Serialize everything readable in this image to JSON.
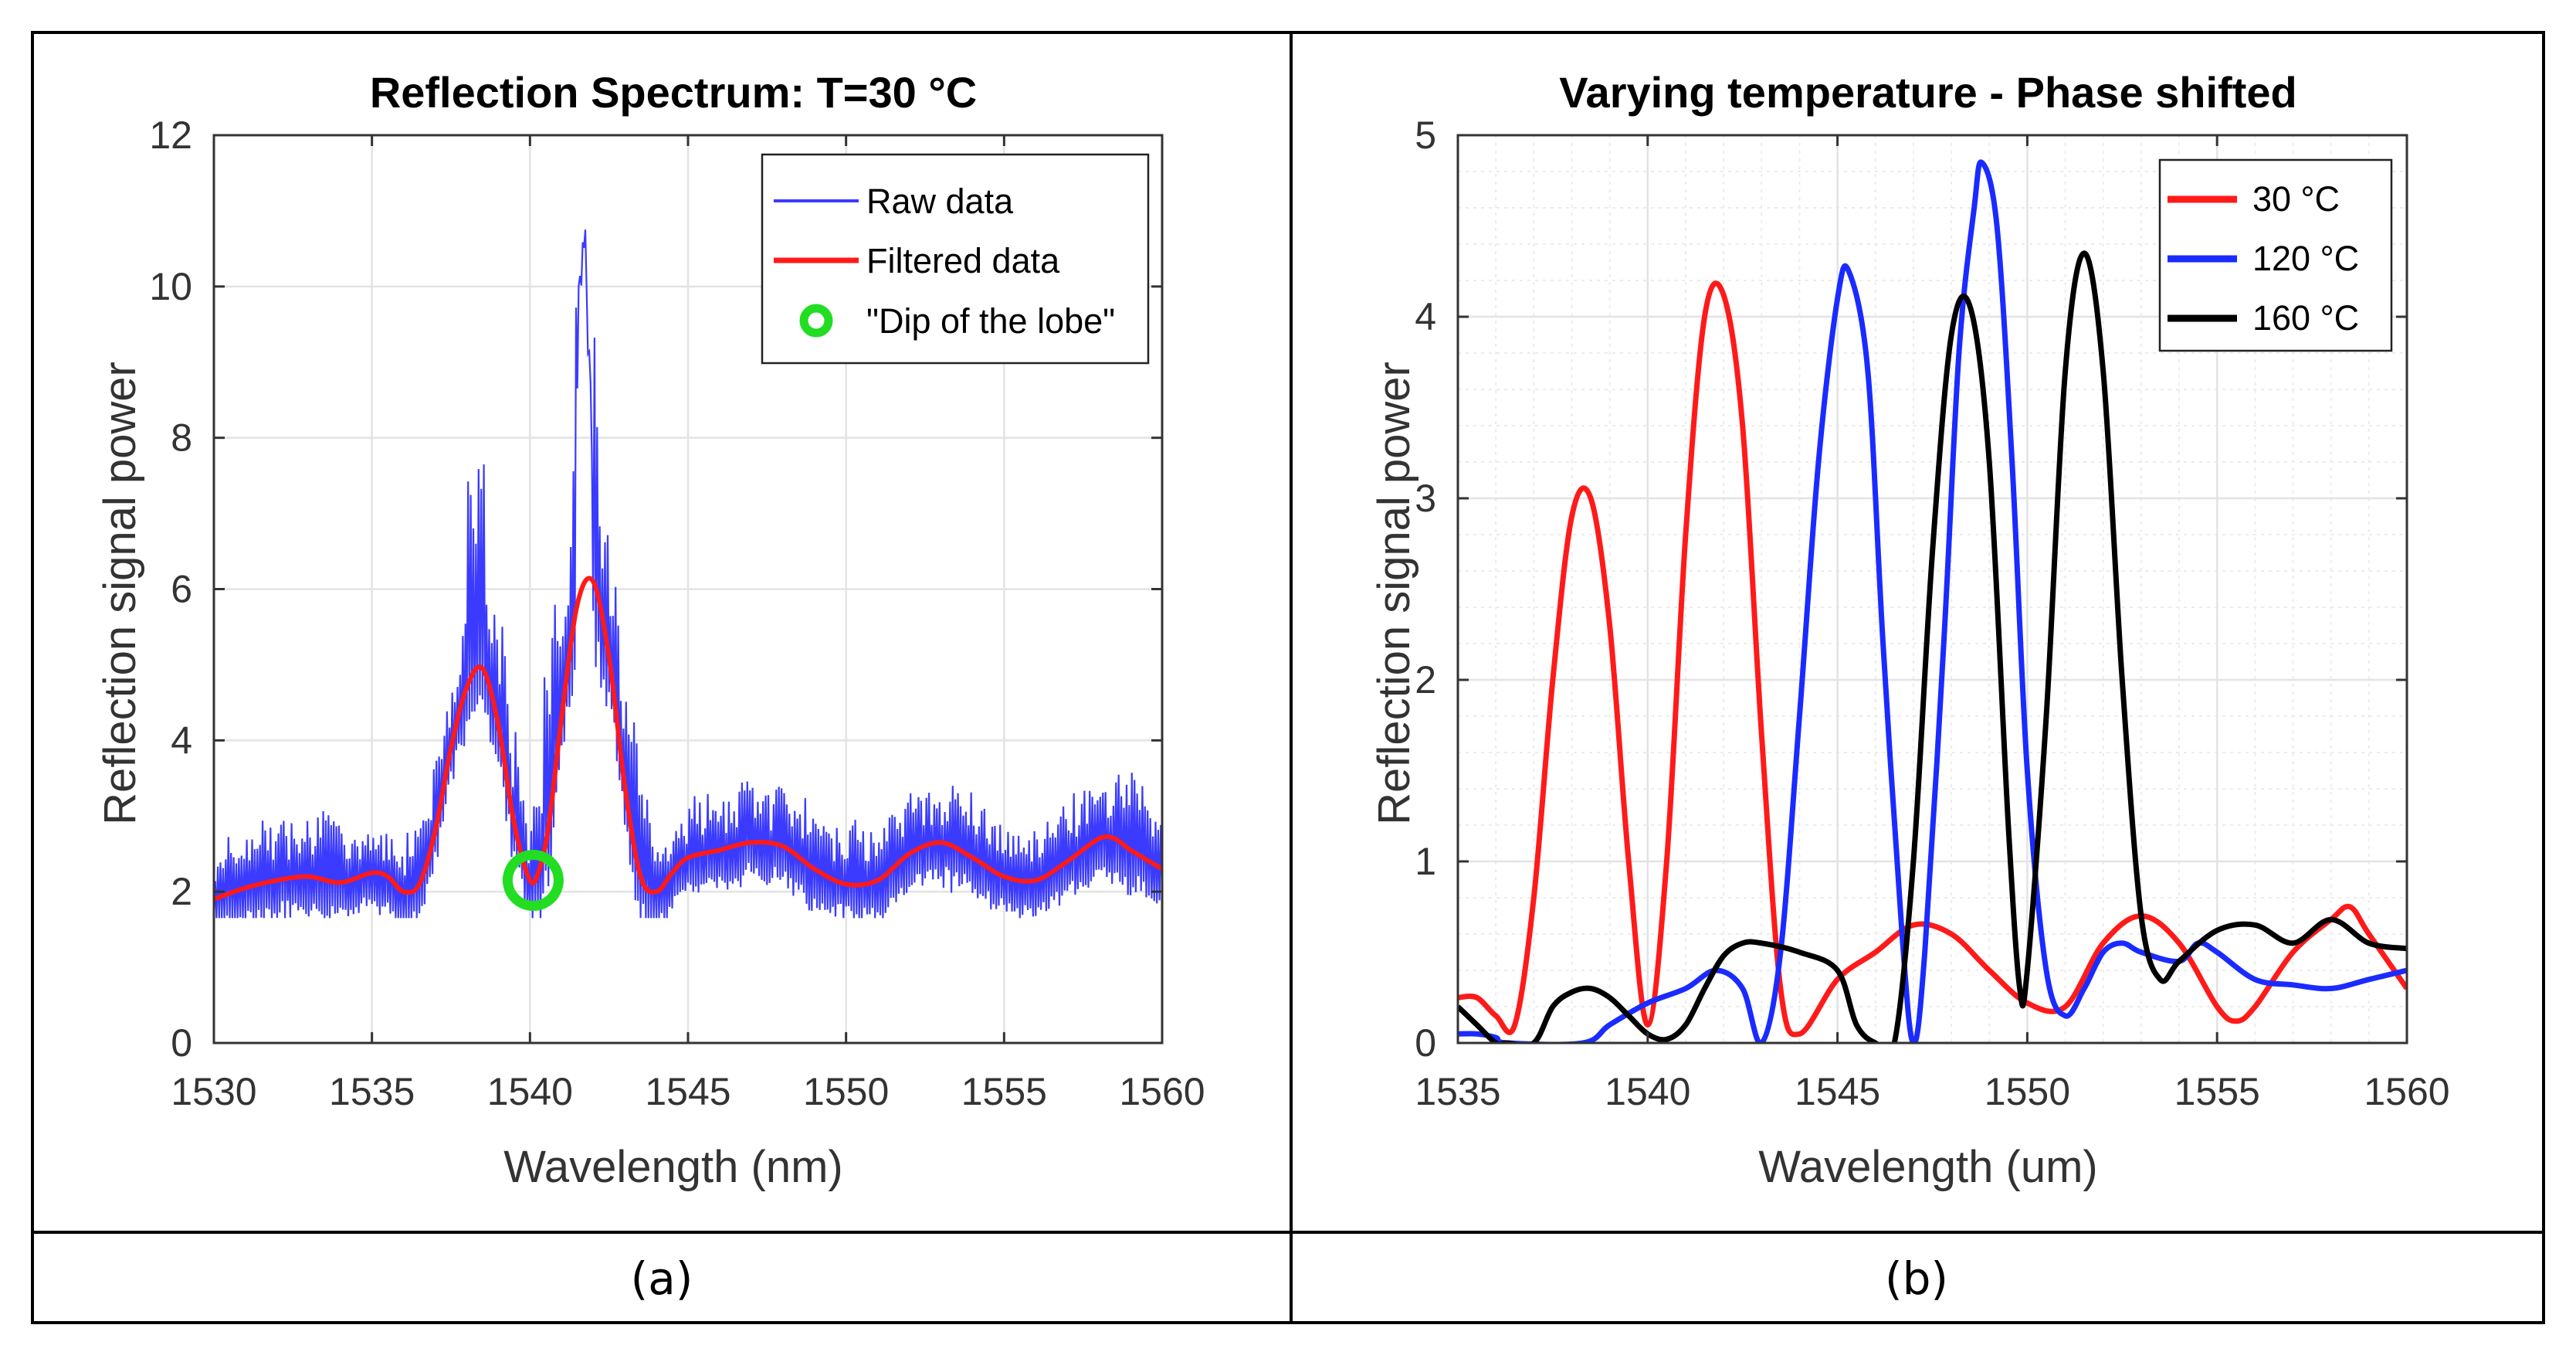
{
  "captions": {
    "a": "(a)",
    "b": "(b)"
  },
  "colors": {
    "raw": "#3b3bff",
    "filtered": "#ff1a1a",
    "dip": "#22dd22",
    "c30": "#ff1a1a",
    "c120": "#1a2bff",
    "c160": "#000000",
    "grid": "#e3e3e3",
    "minor_grid": "#ececec"
  },
  "chart_data": [
    {
      "id": "a",
      "type": "line",
      "title": "Reflection Spectrum: T=30 °C",
      "xlabel": "Wavelength (nm)",
      "ylabel": "Reflection signal power",
      "xlim": [
        1530,
        1560
      ],
      "ylim": [
        0,
        12
      ],
      "xticks": [
        1530,
        1535,
        1540,
        1545,
        1550,
        1555,
        1560
      ],
      "yticks": [
        0,
        2,
        4,
        6,
        8,
        10,
        12
      ],
      "grid": "major",
      "legend": {
        "position": "top-right",
        "entries": [
          "Raw data",
          "Filtered data",
          "\"Dip of the lobe\""
        ]
      },
      "series": [
        {
          "name": "Filtered data",
          "x": [
            1530,
            1531,
            1532,
            1533,
            1534,
            1535,
            1535.5,
            1536,
            1536.5,
            1537,
            1537.5,
            1538,
            1538.5,
            1539,
            1539.5,
            1540,
            1540.3,
            1540.6,
            1541,
            1541.5,
            1542,
            1542.5,
            1543,
            1543.5,
            1544,
            1544.5,
            1545,
            1546,
            1547,
            1548,
            1549,
            1550,
            1551,
            1552,
            1553,
            1554,
            1555,
            1556,
            1557,
            1558,
            1558.5,
            1559,
            1560
          ],
          "values": [
            1.9,
            2.05,
            2.15,
            2.2,
            2.12,
            2.25,
            2.2,
            2.0,
            2.1,
            2.8,
            3.9,
            4.7,
            4.95,
            4.2,
            2.9,
            2.15,
            2.3,
            2.9,
            4.3,
            5.8,
            6.1,
            5.1,
            3.4,
            2.2,
            2.0,
            2.25,
            2.45,
            2.55,
            2.65,
            2.6,
            2.3,
            2.1,
            2.15,
            2.5,
            2.65,
            2.45,
            2.2,
            2.15,
            2.4,
            2.7,
            2.7,
            2.55,
            2.3
          ]
        },
        {
          "name": "Raw data",
          "x": [
            1530,
            1531,
            1532,
            1533,
            1534,
            1535,
            1536,
            1537,
            1538,
            1539,
            1540,
            1541,
            1542,
            1543,
            1544,
            1545,
            1546,
            1547,
            1548,
            1549,
            1550,
            1551,
            1552,
            1553,
            1554,
            1555,
            1556,
            1557,
            1558,
            1559,
            1560
          ],
          "values": [
            2.2,
            2.4,
            2.6,
            2.8,
            2.5,
            2.6,
            2.3,
            3.2,
            5.6,
            5.2,
            2.4,
            5.8,
            8.5,
            4.2,
            2.3,
            2.8,
            2.9,
            3.1,
            3.0,
            2.8,
            2.5,
            2.6,
            2.9,
            3.1,
            2.9,
            2.6,
            2.5,
            2.8,
            3.3,
            3.2,
            2.7
          ]
        }
      ],
      "annotations": [
        {
          "label": "\"Dip of the lobe\"",
          "x": 1540.1,
          "y": 2.15
        }
      ]
    },
    {
      "id": "b",
      "type": "line",
      "title": "Varying temperature - Phase shifted",
      "xlabel": "Wavelength (um)",
      "ylabel": "Reflection signal power",
      "xlim": [
        1535,
        1560
      ],
      "ylim": [
        0,
        5
      ],
      "xticks": [
        1535,
        1540,
        1545,
        1550,
        1555,
        1560
      ],
      "yticks": [
        0,
        1,
        2,
        3,
        4,
        5
      ],
      "grid": "major+minor",
      "legend": {
        "position": "top-right",
        "entries": [
          "30 °C",
          "120 °C",
          "160 °C"
        ]
      },
      "series": [
        {
          "name": "30 °C",
          "x": [
            1535,
            1535.5,
            1536,
            1536.5,
            1537,
            1537.5,
            1538,
            1538.5,
            1539,
            1539.5,
            1540,
            1540.5,
            1541,
            1541.5,
            1542,
            1542.5,
            1543,
            1543.5,
            1544,
            1545,
            1546,
            1547,
            1548,
            1549,
            1550,
            1551,
            1552,
            1553,
            1554,
            1555,
            1555.5,
            1556,
            1557,
            1558,
            1558.5,
            1559,
            1560
          ],
          "values": [
            0.25,
            0.25,
            0.15,
            0.1,
            0.8,
            2.0,
            2.9,
            3.0,
            2.3,
            1.0,
            0.1,
            1.0,
            2.8,
            4.0,
            4.12,
            3.4,
            1.7,
            0.3,
            0.05,
            0.35,
            0.5,
            0.65,
            0.6,
            0.4,
            0.22,
            0.2,
            0.55,
            0.7,
            0.55,
            0.2,
            0.12,
            0.2,
            0.5,
            0.68,
            0.75,
            0.6,
            0.3
          ]
        },
        {
          "name": "120 °C",
          "x": [
            1535,
            1535.5,
            1536,
            1536.3,
            1538.3,
            1539,
            1540,
            1541,
            1541.8,
            1542.5,
            1543,
            1543.5,
            1544,
            1544.5,
            1545,
            1545.3,
            1545.8,
            1546.2,
            1546.7,
            1547,
            1547.3,
            1547.8,
            1548.2,
            1548.6,
            1548.8,
            1549.2,
            1549.6,
            1550,
            1550.5,
            1551,
            1551.5,
            1552,
            1552.5,
            1553,
            1554,
            1554.5,
            1555,
            1556,
            1557,
            1558,
            1559,
            1560
          ],
          "values": [
            0.05,
            0.05,
            0.03,
            0.0,
            0.0,
            0.1,
            0.22,
            0.3,
            0.4,
            0.3,
            0.0,
            0.5,
            1.8,
            3.2,
            4.1,
            4.25,
            3.7,
            2.2,
            0.6,
            0.0,
            0.5,
            2.2,
            3.8,
            4.6,
            4.85,
            4.5,
            3.2,
            1.5,
            0.4,
            0.15,
            0.3,
            0.5,
            0.55,
            0.5,
            0.45,
            0.55,
            0.5,
            0.35,
            0.32,
            0.3,
            0.35,
            0.4
          ]
        },
        {
          "name": "160 °C",
          "x": [
            1535,
            1535.5,
            1536,
            1536.3,
            1537,
            1537.5,
            1538,
            1538.5,
            1539,
            1539.5,
            1540,
            1540.5,
            1541,
            1541.5,
            1542,
            1542.5,
            1543,
            1544,
            1545,
            1545.5,
            1546,
            1546.5,
            1547,
            1547.5,
            1548,
            1548.5,
            1549,
            1549.5,
            1549.8,
            1550,
            1550.5,
            1551,
            1551.5,
            1552,
            1552.5,
            1553,
            1553.5,
            1554,
            1555,
            1556,
            1557,
            1558,
            1559,
            1560
          ],
          "values": [
            0.2,
            0.1,
            0.0,
            0.0,
            0.0,
            0.2,
            0.28,
            0.3,
            0.25,
            0.15,
            0.05,
            0.02,
            0.1,
            0.3,
            0.48,
            0.55,
            0.55,
            0.5,
            0.4,
            0.1,
            0.0,
            0.0,
            1.0,
            2.7,
            3.9,
            4.05,
            3.2,
            1.2,
            0.3,
            0.4,
            1.8,
            3.7,
            4.35,
            3.7,
            2.0,
            0.7,
            0.35,
            0.45,
            0.62,
            0.65,
            0.55,
            0.68,
            0.55,
            0.52
          ]
        }
      ]
    }
  ]
}
